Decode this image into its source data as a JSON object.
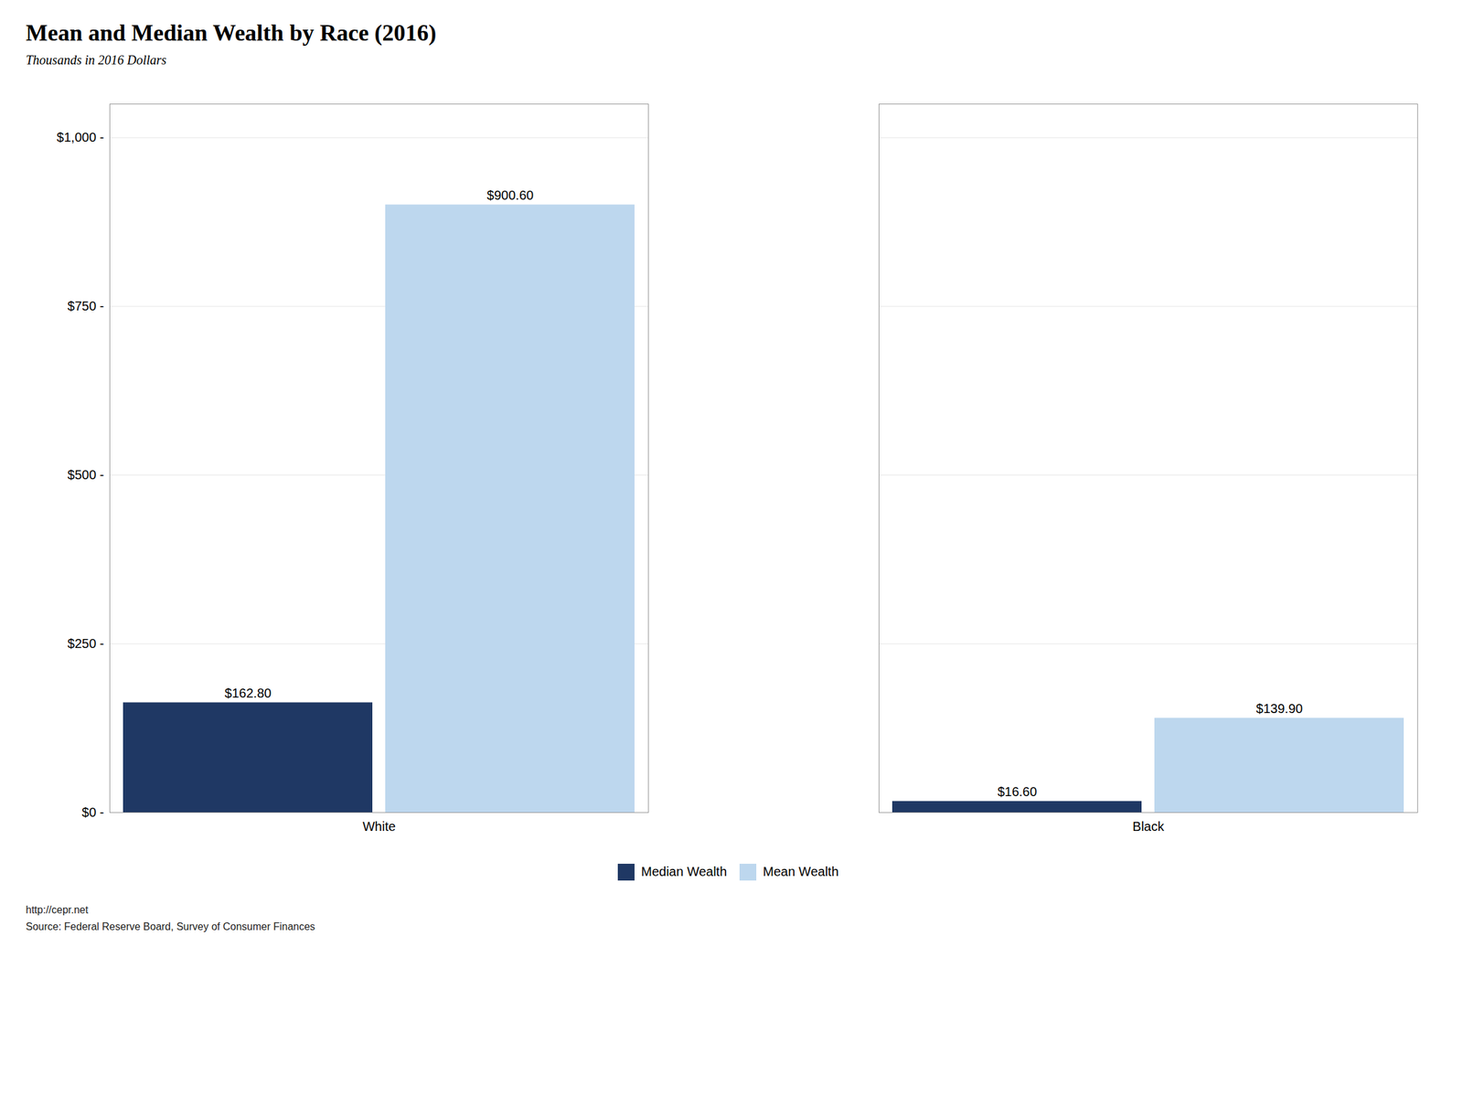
{
  "chart_data": {
    "type": "bar",
    "title": "Mean and Median Wealth by Race (2016)",
    "subtitle": "Thousands in 2016 Dollars",
    "categories": [
      "White",
      "Black"
    ],
    "series": [
      {
        "name": "Median Wealth",
        "color": "#1f3864",
        "values": [
          162.8,
          16.6
        ],
        "value_labels": [
          "$162.80",
          "$16.60"
        ]
      },
      {
        "name": "Mean Wealth",
        "color": "#bdd7ee",
        "values": [
          900.6,
          139.9
        ],
        "value_labels": [
          "$900.60",
          "$139.90"
        ]
      }
    ],
    "ylim": [
      0,
      1050
    ],
    "yticks": [
      {
        "value": 0,
        "label": "$0 -"
      },
      {
        "value": 250,
        "label": "$250 -"
      },
      {
        "value": 500,
        "label": "$500 -"
      },
      {
        "value": 750,
        "label": "$750 -"
      },
      {
        "value": 1000,
        "label": "$1,000 -"
      }
    ],
    "grid": true,
    "legend": "bottom",
    "data_labels": true,
    "annotations": [
      "http://cepr.net",
      "Source: Federal Reserve Board, Survey of Consumer Finances"
    ]
  }
}
